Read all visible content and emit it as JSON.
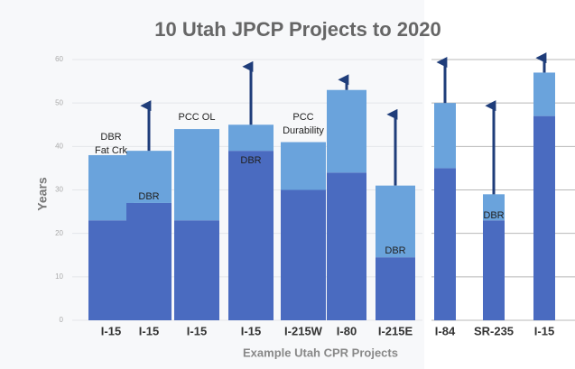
{
  "chart_data": {
    "type": "bar",
    "title": "10 Utah JPCP Projects to 2020",
    "y_label": "Years",
    "x_label": "Example Utah CPR Projects",
    "categories": [
      "I-15",
      "I-15",
      "I-15",
      "I-15",
      "I-215W",
      "I-80",
      "I-215E",
      "I-84",
      "SR-235",
      "I-15"
    ],
    "series": [
      {
        "color": "#4a6bc0",
        "values": [
          23,
          27,
          23,
          39,
          30,
          34,
          14.5,
          35,
          23,
          47
        ]
      },
      {
        "color": "#6aa3dc",
        "values": [
          15,
          12,
          21,
          6,
          11,
          19,
          16.5,
          15,
          6,
          10
        ]
      }
    ],
    "arrows": {
      "color": "#1f3d7a",
      "values": [
        null,
        50,
        null,
        59,
        null,
        56,
        48,
        60,
        50,
        61
      ]
    },
    "annotations": [
      {
        "lines": [
          "DBR",
          "Fat Crk"
        ],
        "category": 0
      },
      {
        "lines": [
          "DBR"
        ],
        "category": 1
      },
      {
        "lines": [
          "PCC OL"
        ],
        "category": 2
      },
      {
        "lines": [
          "DBR"
        ],
        "category": 3
      },
      {
        "lines": [
          "PCC",
          "Durability"
        ],
        "category": 4
      },
      {
        "lines": [
          "DBR"
        ],
        "category": 6
      },
      {
        "lines": [
          "DBR"
        ],
        "category": 8
      }
    ],
    "ylim": [
      0,
      60
    ],
    "yticks": [
      0,
      10,
      20,
      30,
      40,
      50,
      60
    ],
    "grid": true
  }
}
